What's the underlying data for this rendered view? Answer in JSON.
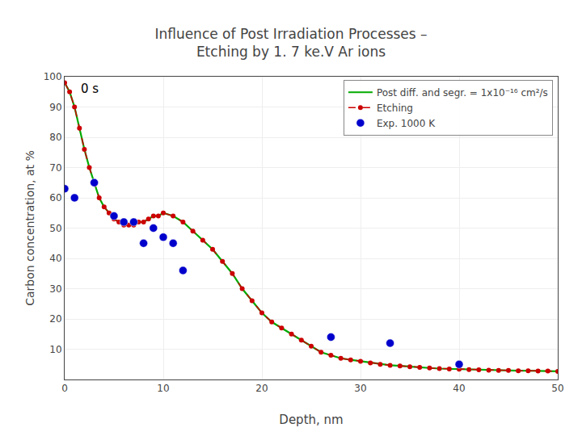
{
  "chart_data": {
    "type": "line",
    "title": "Influence of Post Irradiation Processes –\nEtching by 1. 7 ke.V Ar ions",
    "x_label": "Depth, nm",
    "y_label": "Carbon concentration, at %",
    "xlim": [
      0,
      50
    ],
    "ylim": [
      0,
      100
    ],
    "xticks": [
      0,
      10,
      20,
      30,
      40,
      50
    ],
    "yticks": [
      10,
      20,
      30,
      40,
      50,
      60,
      70,
      80,
      90,
      100
    ],
    "grid": true,
    "legend": "upper right",
    "annotations": [
      {
        "text": "0 s",
        "x": 1.5,
        "y": 93
      }
    ],
    "series": [
      {
        "name": "Post diff. and segr. = 1x10⁻¹⁶ cm²/s",
        "type": "line",
        "color": "#00aa00",
        "line_style": "solid",
        "x": [
          0,
          0.5,
          1,
          1.5,
          2,
          2.5,
          3,
          3.5,
          4,
          4.5,
          5,
          5.5,
          6,
          6.5,
          7,
          7.5,
          8,
          8.5,
          9,
          9.5,
          10,
          11,
          12,
          13,
          14,
          15,
          16,
          17,
          18,
          19,
          20,
          21,
          22,
          23,
          24,
          25,
          26,
          27,
          28,
          29,
          30,
          31,
          32,
          33,
          34,
          35,
          36,
          37,
          38,
          39,
          40,
          41,
          42,
          43,
          44,
          45,
          46,
          47,
          48,
          49,
          50
        ],
        "values": [
          98,
          95,
          90,
          83,
          76,
          70,
          65,
          60,
          57,
          55,
          53,
          52,
          51,
          51,
          51,
          52,
          52,
          53,
          54,
          54,
          55,
          54,
          52,
          49,
          46,
          43,
          39,
          35,
          30,
          26,
          22,
          19,
          17,
          15,
          13,
          11,
          9,
          8,
          7,
          6.5,
          6,
          5.5,
          5,
          4.7,
          4.5,
          4.2,
          4,
          3.8,
          3.6,
          3.5,
          3.4,
          3.3,
          3.2,
          3.1,
          3.0,
          3.0,
          2.9,
          2.9,
          2.8,
          2.8,
          2.7
        ]
      },
      {
        "name": "Etching",
        "type": "line",
        "color": "#cc0000",
        "line_style": "dashed",
        "marker": "circle",
        "x": [
          0,
          0.5,
          1,
          1.5,
          2,
          2.5,
          3,
          3.5,
          4,
          4.5,
          5,
          5.5,
          6,
          6.5,
          7,
          7.5,
          8,
          8.5,
          9,
          9.5,
          10,
          11,
          12,
          13,
          14,
          15,
          16,
          17,
          18,
          19,
          20,
          21,
          22,
          23,
          24,
          25,
          26,
          27,
          28,
          29,
          30,
          31,
          32,
          33,
          34,
          35,
          36,
          37,
          38,
          39,
          40,
          41,
          42,
          43,
          44,
          45,
          46,
          47,
          48,
          49,
          50
        ],
        "values": [
          98,
          95,
          90,
          83,
          76,
          70,
          65,
          60,
          57,
          55,
          53,
          52,
          51,
          51,
          51,
          52,
          52,
          53,
          54,
          54,
          55,
          54,
          52,
          49,
          46,
          43,
          39,
          35,
          30,
          26,
          22,
          19,
          17,
          15,
          13,
          11,
          9,
          8,
          7,
          6.5,
          6,
          5.5,
          5,
          4.7,
          4.5,
          4.2,
          4,
          3.8,
          3.6,
          3.5,
          3.4,
          3.3,
          3.2,
          3.1,
          3.0,
          3.0,
          2.9,
          2.9,
          2.8,
          2.8,
          2.7
        ]
      },
      {
        "name": "Exp. 1000 K",
        "type": "scatter",
        "color": "#0000cc",
        "marker": "circle",
        "x": [
          0,
          1,
          3,
          5,
          6,
          7,
          8,
          9,
          10,
          11,
          12,
          27,
          33,
          40
        ],
        "values": [
          63,
          60,
          65,
          54,
          52,
          52,
          45,
          50,
          47,
          45,
          36,
          14,
          12,
          5
        ]
      }
    ]
  }
}
